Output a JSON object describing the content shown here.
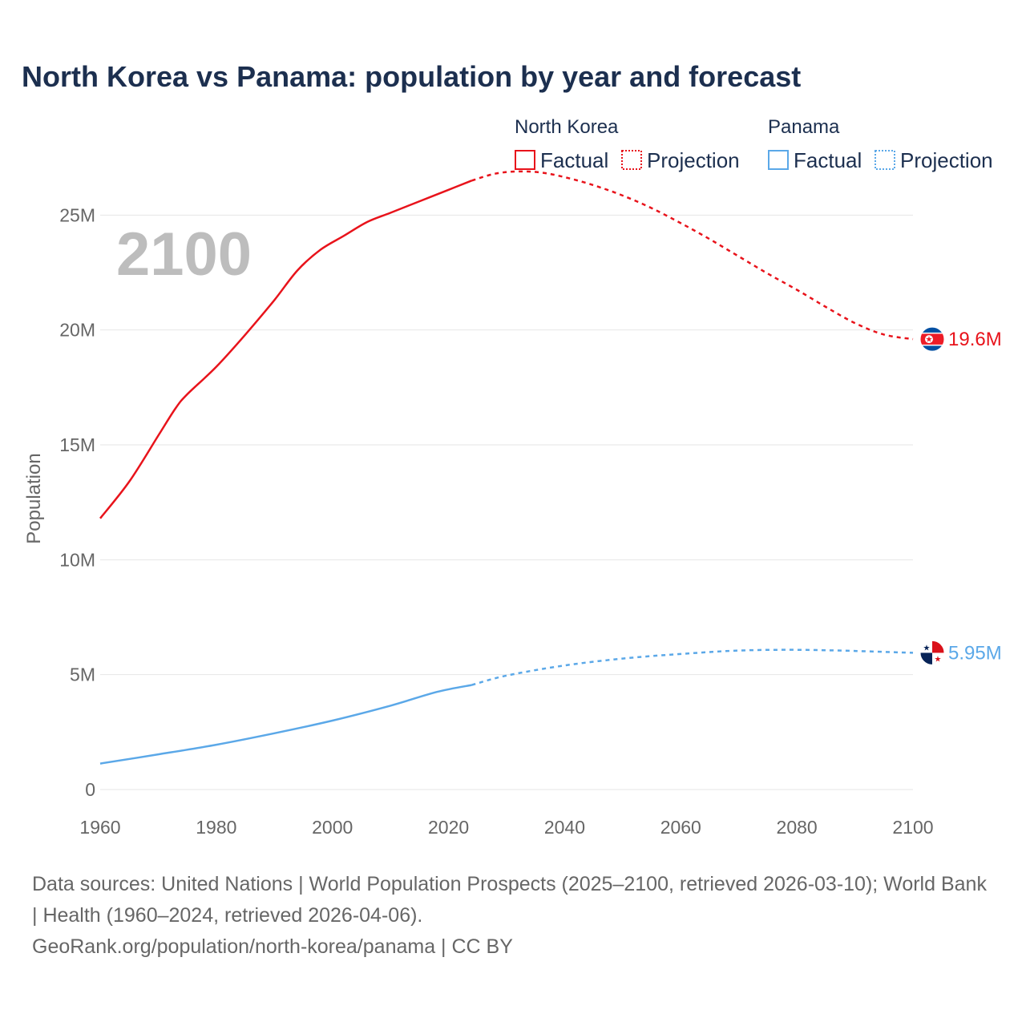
{
  "chart_data": {
    "type": "line",
    "title": "North Korea vs Panama: population by year and forecast",
    "current_year_label": "2100",
    "ylabel": "Population",
    "xlabel": "",
    "xlim": [
      1960,
      2100
    ],
    "ylim": [
      0,
      27000000
    ],
    "x_ticks": [
      1960,
      1980,
      2000,
      2020,
      2040,
      2060,
      2080,
      2100
    ],
    "x_tick_labels": [
      "1960",
      "1980",
      "2000",
      "2020",
      "2040",
      "2060",
      "2080",
      "2100"
    ],
    "y_ticks": [
      0,
      5000000,
      10000000,
      15000000,
      20000000,
      25000000
    ],
    "y_tick_labels": [
      "0",
      "5M",
      "10M",
      "15M",
      "20M",
      "25M"
    ],
    "grid": true,
    "legend": {
      "placement": "top-right",
      "factual_label": "Factual",
      "projection_label": "Projection"
    },
    "series": [
      {
        "name": "North Korea",
        "color": "#e8131b",
        "flag_icon": "north-korea-flag-icon",
        "end_label": "19.6M",
        "factual": {
          "x": [
            1960,
            1965,
            1970,
            1973,
            1975,
            1980,
            1985,
            1990,
            1994,
            1998,
            2002,
            2006,
            2010,
            2015,
            2020,
            2024
          ],
          "y": [
            11800000,
            13400000,
            15400000,
            16600000,
            17200000,
            18400000,
            19800000,
            21300000,
            22600000,
            23500000,
            24100000,
            24700000,
            25100000,
            25600000,
            26100000,
            26500000
          ]
        },
        "projection": {
          "x": [
            2024,
            2028,
            2032,
            2036,
            2040,
            2045,
            2050,
            2055,
            2060,
            2065,
            2070,
            2075,
            2080,
            2085,
            2090,
            2095,
            2100
          ],
          "y": [
            26500000,
            26800000,
            26900000,
            26850000,
            26650000,
            26300000,
            25850000,
            25300000,
            24650000,
            23950000,
            23200000,
            22450000,
            21750000,
            21000000,
            20300000,
            19800000,
            19600000
          ]
        }
      },
      {
        "name": "Panama",
        "color": "#5ba8e8",
        "flag_icon": "panama-flag-icon",
        "end_label": "5.95M",
        "factual": {
          "x": [
            1960,
            1970,
            1980,
            1990,
            2000,
            2010,
            2018,
            2024
          ],
          "y": [
            1130000,
            1530000,
            1950000,
            2450000,
            3000000,
            3650000,
            4250000,
            4550000
          ]
        },
        "projection": {
          "x": [
            2024,
            2030,
            2040,
            2050,
            2060,
            2070,
            2080,
            2090,
            2100
          ],
          "y": [
            4550000,
            4960000,
            5400000,
            5700000,
            5900000,
            6050000,
            6080000,
            6030000,
            5950000
          ]
        }
      }
    ]
  },
  "footer": {
    "sources": "Data sources: United Nations | World Population Prospects (2025–2100, retrieved 2026-03-10); World Bank | Health (1960–2024, retrieved 2026-04-06).",
    "attribution": "GeoRank.org/population/north-korea/panama | CC BY"
  }
}
